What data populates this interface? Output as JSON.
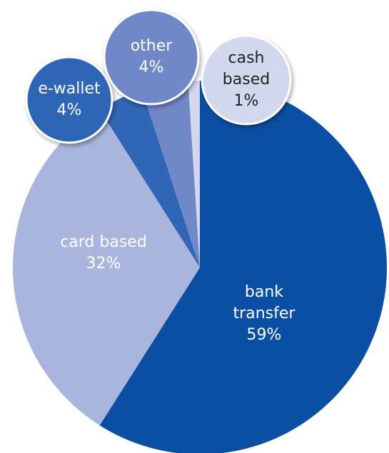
{
  "chart_data": {
    "type": "pie",
    "categories": [
      "bank transfer",
      "card based",
      "e-wallet",
      "other",
      "cash based"
    ],
    "values": [
      59,
      32,
      4,
      4,
      1
    ],
    "value_labels": [
      "59%",
      "32%",
      "4%",
      "4%",
      "1%"
    ],
    "colors": [
      "#0a4fa3",
      "#a9b5dc",
      "#2f66b5",
      "#7188c8",
      "#d3d8ee"
    ]
  }
}
